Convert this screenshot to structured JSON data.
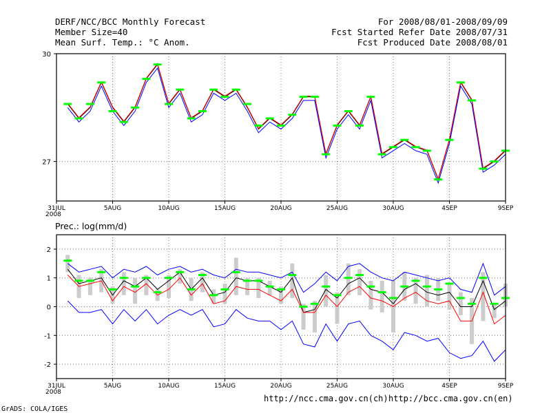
{
  "header": {
    "left": [
      "DERF/NCC/BCC Monthly Forecast",
      "Member Size=40",
      "Mean Surf. Temp.: °C Anom."
    ],
    "right": [
      "For 2008/08/01-2008/09/09",
      "Fcst Started Refer Date 2008/07/31",
      "Fcst Produced Date 2008/08/01"
    ]
  },
  "footer": {
    "credit": "GrADS: COLA/IGES",
    "url_ncc": "http://ncc.cma.gov.cn(ch)",
    "url_bcc": "http://bcc.cma.gov.cn(en)"
  },
  "chart_data": [
    {
      "id": "temp",
      "type": "line",
      "title": "Mean Surf. Temp.: °C Anom.",
      "ylim": [
        25.9,
        30
      ],
      "yticks": [
        27,
        30
      ],
      "xtick_labels": [
        "31JUL",
        "5AUG",
        "10AUG",
        "15AUG",
        "20AUG",
        "25AUG",
        "30AUG",
        "4SEP",
        "9SEP"
      ],
      "xtick_days": [
        0,
        5,
        10,
        15,
        20,
        25,
        30,
        35,
        40
      ],
      "x_sublabel": "2008",
      "days": [
        1,
        2,
        3,
        4,
        5,
        6,
        7,
        8,
        9,
        10,
        11,
        12,
        13,
        14,
        15,
        16,
        17,
        18,
        19,
        20,
        21,
        22,
        23,
        24,
        25,
        26,
        27,
        28,
        29,
        30,
        31,
        32,
        33,
        34,
        35,
        36,
        37,
        38,
        39,
        40
      ],
      "grid": true,
      "series": [
        {
          "name": "ensemble-mean",
          "color": "#000000",
          "values": [
            28.6,
            28.2,
            28.5,
            29.2,
            28.5,
            28.1,
            28.5,
            29.3,
            29.7,
            28.6,
            29.0,
            28.2,
            28.4,
            29.0,
            28.8,
            29.0,
            28.5,
            27.9,
            28.2,
            28.0,
            28.3,
            28.8,
            28.8,
            27.2,
            28.0,
            28.4,
            28.0,
            28.8,
            27.2,
            27.4,
            27.6,
            27.4,
            27.3,
            26.5,
            27.6,
            29.2,
            28.7,
            26.8,
            27.0,
            27.3
          ]
        },
        {
          "name": "member-max",
          "color": "#ff0000",
          "values": [
            28.62,
            28.22,
            28.52,
            29.22,
            28.52,
            28.12,
            28.52,
            29.32,
            29.72,
            28.62,
            29.02,
            28.22,
            28.42,
            29.02,
            28.82,
            29.02,
            28.52,
            27.92,
            28.22,
            28.02,
            28.32,
            28.82,
            28.82,
            27.22,
            28.02,
            28.42,
            28.02,
            28.82,
            27.22,
            27.42,
            27.62,
            27.42,
            27.32,
            26.52,
            27.62,
            29.22,
            28.72,
            26.82,
            27.02,
            27.32
          ]
        },
        {
          "name": "member-min",
          "color": "#0000ff",
          "values": [
            28.5,
            28.1,
            28.4,
            29.1,
            28.4,
            28.0,
            28.4,
            29.2,
            29.6,
            28.5,
            28.9,
            28.1,
            28.3,
            28.9,
            28.7,
            28.9,
            28.4,
            27.8,
            28.1,
            27.9,
            28.2,
            28.7,
            28.7,
            27.1,
            27.9,
            28.3,
            27.9,
            28.7,
            27.1,
            27.3,
            27.5,
            27.3,
            27.2,
            26.4,
            27.5,
            29.1,
            28.6,
            26.7,
            26.9,
            27.2
          ]
        },
        {
          "name": "observed",
          "color": "#00ff00",
          "style": "marker",
          "values": [
            28.6,
            28.2,
            28.6,
            29.2,
            28.4,
            28.1,
            28.5,
            29.3,
            29.7,
            28.6,
            29.0,
            28.2,
            28.4,
            29.0,
            28.8,
            29.0,
            28.6,
            28.0,
            28.2,
            28.0,
            28.3,
            28.8,
            28.8,
            27.2,
            28.0,
            28.4,
            28.0,
            28.8,
            27.2,
            27.4,
            27.6,
            27.4,
            27.3,
            26.5,
            27.6,
            29.2,
            28.7,
            26.8,
            27.0,
            27.3
          ]
        }
      ]
    },
    {
      "id": "prec",
      "type": "line",
      "title": "Prec.: log(mm/d)",
      "ylim": [
        -2.5,
        2.5
      ],
      "yticks": [
        -2,
        -1,
        0,
        1,
        2
      ],
      "xtick_labels": [
        "31JUL",
        "5AUG",
        "10AUG",
        "15AUG",
        "20AUG",
        "25AUG",
        "30AUG",
        "4SEP",
        "9SEP"
      ],
      "xtick_days": [
        0,
        5,
        10,
        15,
        20,
        25,
        30,
        35,
        40
      ],
      "x_sublabel": "2008",
      "days": [
        1,
        2,
        3,
        4,
        5,
        6,
        7,
        8,
        9,
        10,
        11,
        12,
        13,
        14,
        15,
        16,
        17,
        18,
        19,
        20,
        21,
        22,
        23,
        24,
        25,
        26,
        27,
        28,
        29,
        30,
        31,
        32,
        33,
        34,
        35,
        36,
        37,
        38,
        39,
        40
      ],
      "grid": true,
      "bars": {
        "name": "spread",
        "color": "#cccccc",
        "low": [
          1.2,
          0.3,
          0.4,
          0.5,
          0.1,
          0.4,
          0.1,
          0.4,
          0.2,
          0.3,
          0.8,
          0.2,
          0.5,
          0.1,
          0.1,
          0.4,
          0.4,
          0.3,
          0.4,
          0.1,
          0.3,
          -0.8,
          -0.9,
          0.0,
          -0.6,
          0.4,
          0.4,
          -0.1,
          -0.2,
          -0.9,
          0.2,
          0.1,
          0.0,
          0.2,
          -0.1,
          -0.3,
          -1.3,
          -0.5,
          -0.4,
          0.0
        ],
        "high": [
          1.8,
          1.1,
          1.0,
          1.3,
          0.7,
          1.2,
          1.0,
          1.1,
          0.6,
          1.1,
          1.3,
          1.0,
          1.2,
          0.6,
          0.8,
          1.7,
          1.0,
          1.0,
          0.9,
          0.7,
          1.5,
          0.1,
          0.2,
          1.1,
          0.5,
          1.5,
          1.3,
          0.9,
          0.9,
          0.9,
          1.2,
          1.0,
          1.1,
          1.0,
          0.8,
          0.5,
          0.3,
          1.2,
          0.1,
          0.8
        ]
      },
      "series": [
        {
          "name": "upper-envelope",
          "color": "#0000ff",
          "values": [
            1.5,
            1.2,
            1.3,
            1.4,
            1.0,
            1.3,
            1.2,
            1.4,
            1.1,
            1.3,
            1.4,
            1.2,
            1.3,
            1.1,
            1.0,
            1.3,
            1.2,
            1.2,
            1.1,
            1.0,
            1.2,
            0.5,
            0.8,
            1.2,
            0.9,
            1.4,
            1.5,
            1.2,
            1.0,
            0.9,
            1.2,
            1.1,
            1.0,
            0.9,
            1.0,
            0.6,
            0.5,
            1.5,
            0.4,
            0.7
          ]
        },
        {
          "name": "ensemble-mean",
          "color": "#000000",
          "values": [
            1.3,
            0.8,
            0.9,
            1.0,
            0.4,
            0.9,
            0.7,
            1.0,
            0.6,
            0.9,
            1.2,
            0.6,
            1.0,
            0.4,
            0.5,
            1.0,
            0.9,
            0.9,
            0.7,
            0.5,
            1.0,
            -0.2,
            -0.1,
            0.6,
            0.3,
            0.8,
            1.0,
            0.6,
            0.5,
            0.1,
            0.6,
            0.8,
            0.5,
            0.4,
            0.5,
            0.0,
            0.0,
            0.9,
            -0.1,
            0.2
          ]
        },
        {
          "name": "member-median",
          "color": "#ff0000",
          "values": [
            1.1,
            0.7,
            0.8,
            0.9,
            0.2,
            0.7,
            0.5,
            0.8,
            0.4,
            0.6,
            1.0,
            0.4,
            0.8,
            0.1,
            0.2,
            0.7,
            0.6,
            0.6,
            0.4,
            0.2,
            0.6,
            -0.2,
            -0.2,
            0.4,
            0.0,
            0.5,
            0.7,
            0.3,
            0.2,
            0.0,
            0.3,
            0.5,
            0.2,
            0.1,
            0.2,
            -0.5,
            -0.5,
            0.5,
            -0.6,
            -0.3
          ]
        },
        {
          "name": "lower-envelope",
          "color": "#0000ff",
          "values": [
            0.2,
            -0.2,
            -0.2,
            -0.1,
            -0.6,
            -0.1,
            -0.5,
            -0.1,
            -0.6,
            -0.3,
            -0.1,
            -0.3,
            -0.1,
            -0.7,
            -0.6,
            -0.1,
            -0.4,
            -0.5,
            -0.5,
            -0.8,
            -0.5,
            -1.3,
            -1.4,
            -0.6,
            -1.2,
            -0.6,
            -0.5,
            -1.0,
            -1.2,
            -1.5,
            -0.9,
            -1.0,
            -1.2,
            -1.1,
            -1.6,
            -1.8,
            -1.7,
            -1.2,
            -1.9,
            -1.5
          ]
        },
        {
          "name": "observed",
          "color": "#00ff00",
          "style": "marker",
          "values": [
            1.6,
            0.9,
            0.9,
            1.2,
            0.6,
            1.0,
            0.7,
            1.0,
            0.5,
            1.0,
            1.2,
            0.6,
            1.1,
            0.4,
            0.6,
            1.2,
            0.9,
            0.9,
            0.7,
            0.6,
            1.1,
            0.0,
            0.1,
            0.7,
            0.4,
            1.0,
            1.1,
            0.7,
            0.5,
            0.3,
            0.7,
            0.9,
            0.7,
            0.6,
            0.8,
            0.3,
            0.1,
            1.0,
            0.1,
            0.3
          ]
        }
      ]
    }
  ]
}
